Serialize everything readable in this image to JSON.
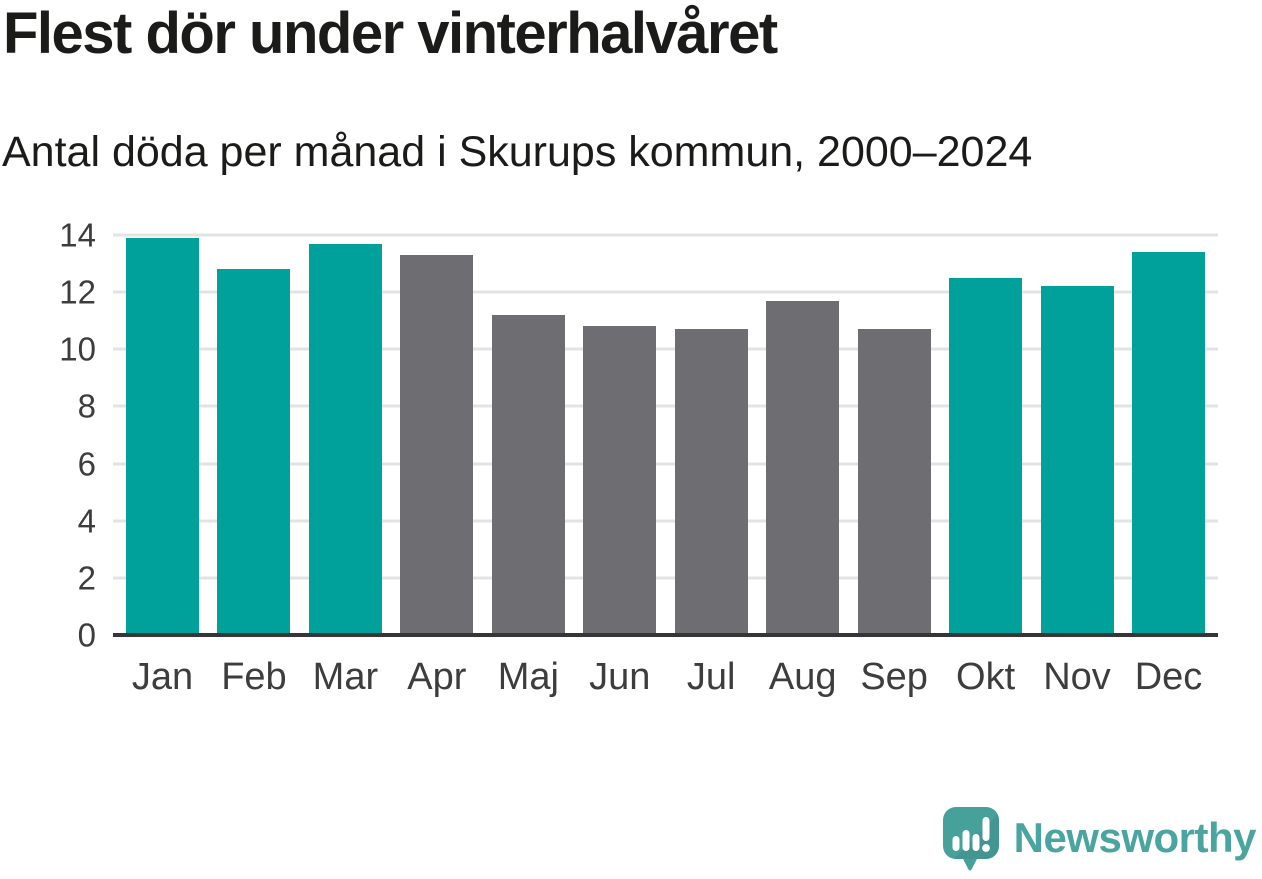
{
  "chart_data": {
    "type": "bar",
    "title": "Flest dör under vinterhalvåret",
    "subtitle": "Antal döda per månad i Skurups kommun, 2000–2024",
    "categories": [
      "Jan",
      "Feb",
      "Mar",
      "Apr",
      "Maj",
      "Jun",
      "Jul",
      "Aug",
      "Sep",
      "Okt",
      "Nov",
      "Dec"
    ],
    "values": [
      13.9,
      12.8,
      13.7,
      13.3,
      11.2,
      10.8,
      10.7,
      11.7,
      10.7,
      12.5,
      12.2,
      13.4
    ],
    "bar_colors": [
      "teal",
      "teal",
      "teal",
      "gray",
      "gray",
      "gray",
      "gray",
      "gray",
      "gray",
      "teal",
      "teal",
      "teal"
    ],
    "palette": {
      "teal": "#00A19A",
      "gray": "#6D6D72"
    },
    "xlabel": "",
    "ylabel": "",
    "ylim": [
      0,
      14
    ],
    "yticks": [
      0,
      2,
      4,
      6,
      8,
      10,
      12,
      14
    ],
    "grid": "horizontal",
    "legend": "none",
    "gridline_color": "#E3E3E3",
    "axis_line_color": "#363636",
    "tick_label_color": "#3D3D3D"
  },
  "footer": {
    "brand": "Newsworthy",
    "brand_color": "#4AA5A0",
    "logo_icon": "newsworthy-speech-bubble-chart-icon",
    "logo_teal": "#47A19B"
  }
}
